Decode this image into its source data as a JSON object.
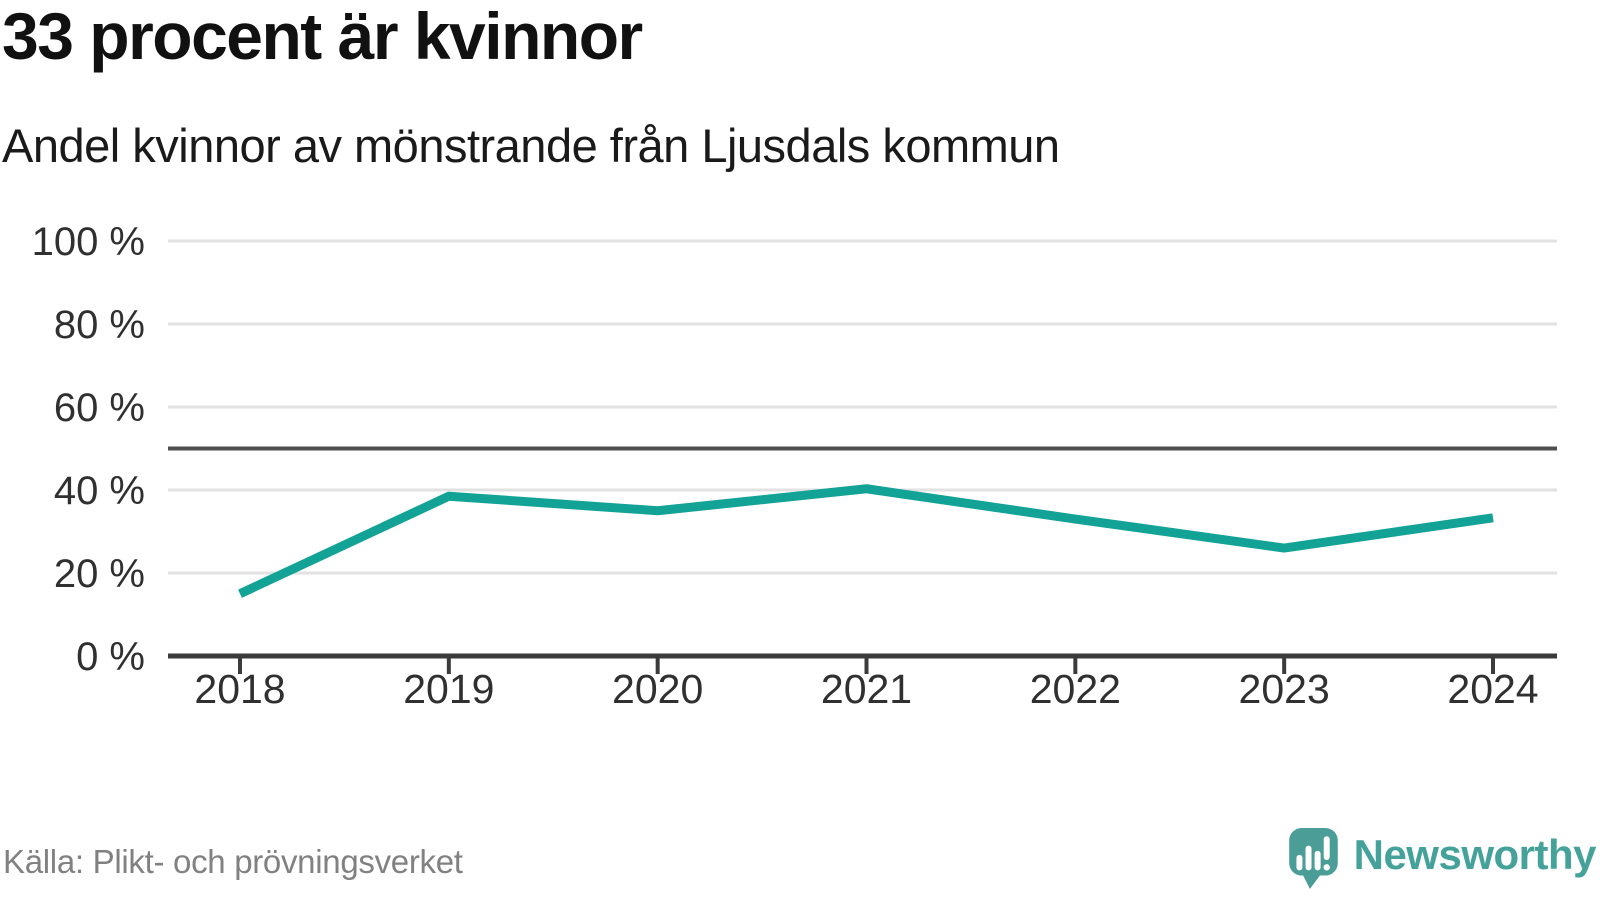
{
  "header": {
    "title": "33 procent är kvinnor",
    "subtitle": "Andel kvinnor av mönstrande från Ljusdals kommun"
  },
  "chart_data": {
    "type": "line",
    "title": "33 procent är kvinnor",
    "subtitle": "Andel kvinnor av mönstrande från Ljusdals kommun",
    "x": [
      2018,
      2019,
      2020,
      2021,
      2022,
      2023,
      2024
    ],
    "series": [
      {
        "name": "Andel kvinnor av mönstrande",
        "values": [
          15,
          38.5,
          35,
          40.3,
          33,
          26,
          33.3
        ]
      }
    ],
    "ylim": [
      0,
      100
    ],
    "yticks": [
      0,
      20,
      40,
      60,
      80,
      100
    ],
    "ytick_suffix": " %",
    "reference_line": 50,
    "grid": true,
    "legend": "none",
    "line_color": "#12a296"
  },
  "footer": {
    "source": "Källa: Plikt- och prövningsverket",
    "brand": "Newsworthy"
  },
  "colors": {
    "accent": "#12a296",
    "brand_teal": "#45a29a",
    "grid": "#e2e2e2",
    "reference": "#4f4f4f",
    "axis": "#3b3b3b",
    "axis_text": "#303030",
    "source_text": "#818181"
  }
}
